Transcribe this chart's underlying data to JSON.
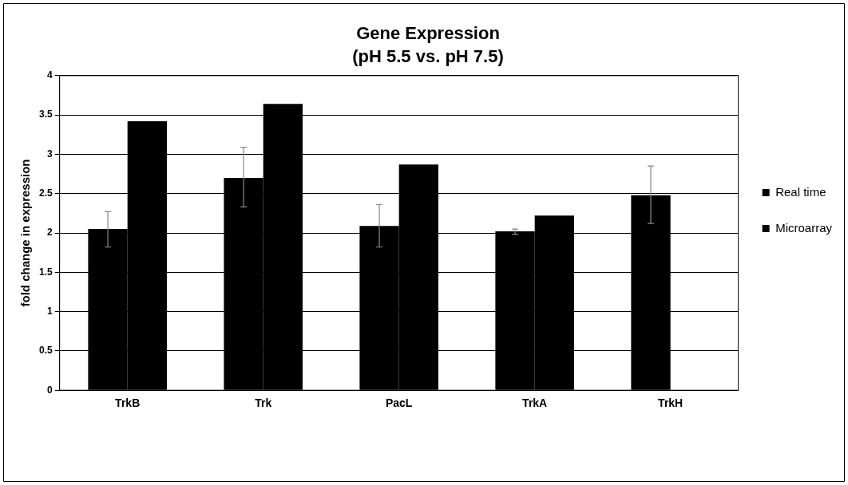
{
  "chart_data": {
    "type": "bar",
    "title": "Gene Expression",
    "subtitle": "(pH 5.5 vs. pH 7.5)",
    "ylabel": "fold change in expression",
    "categories": [
      "TrkB",
      "Trk",
      "PacL",
      "TrkA",
      "TrkH"
    ],
    "series": [
      {
        "name": "Real time",
        "color": "#000000",
        "values": [
          2.05,
          2.7,
          2.09,
          2.02,
          2.48
        ],
        "errors": [
          [
            1.82,
            2.27
          ],
          [
            2.33,
            3.09
          ],
          [
            1.82,
            2.36
          ],
          [
            1.98,
            2.05
          ],
          [
            2.12,
            2.85
          ]
        ]
      },
      {
        "name": "Microarray",
        "color": "#000000",
        "values": [
          3.42,
          3.64,
          2.87,
          2.22,
          null
        ]
      }
    ],
    "ylim": [
      0,
      4
    ],
    "yticks": [
      0,
      0.5,
      1,
      1.5,
      2,
      2.5,
      3,
      3.5,
      4
    ],
    "grid": "y",
    "legend": "right"
  }
}
